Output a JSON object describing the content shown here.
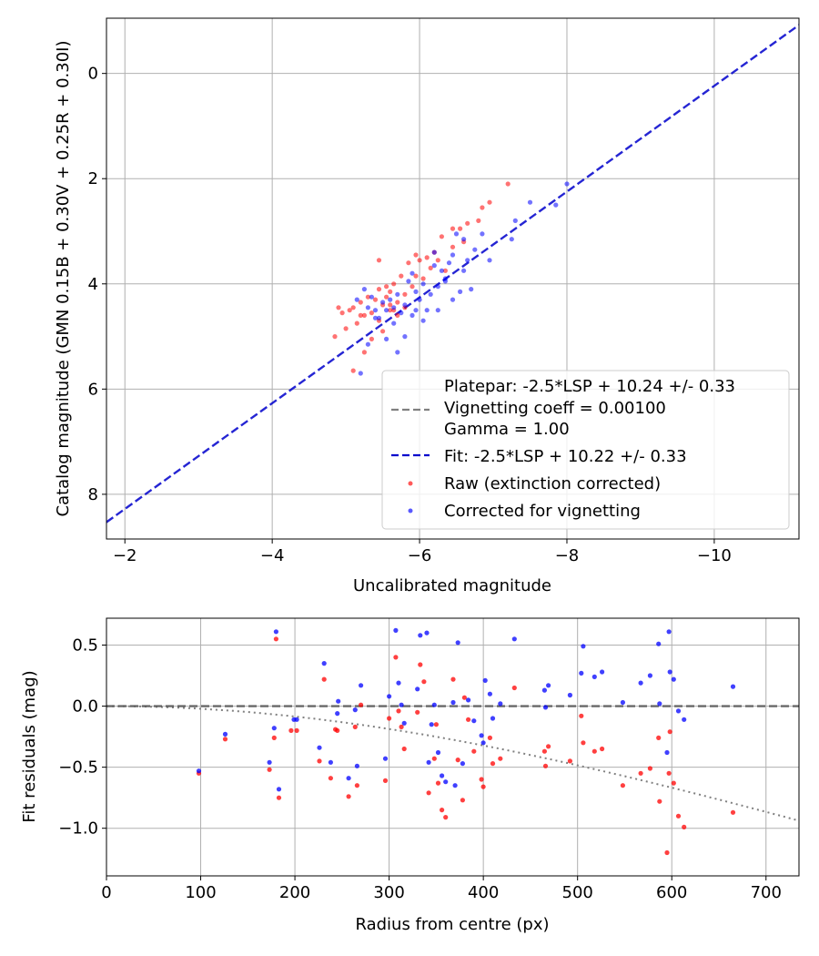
{
  "colors": {
    "raw": "#ff0000",
    "corrected": "#0000ff",
    "fit_line": "#0000cc",
    "platepar_line": "#808080",
    "grid": "#b0b0b0"
  },
  "chart_data": [
    {
      "type": "scatter",
      "xlabel": "Uncalibrated magnitude",
      "ylabel": "Catalog magnitude (GMN 0.15B + 0.30V + 0.25R + 0.30I)",
      "xlim": [
        -1.75,
        -11.15
      ],
      "ylim": [
        8.85,
        -1.05
      ],
      "x_inverted": true,
      "y_inverted": true,
      "grid": true,
      "xticks": [
        -2,
        -4,
        -6,
        -8,
        -10
      ],
      "xtick_labels": [
        "−2",
        "−4",
        "−6",
        "−8",
        "−10"
      ],
      "yticks": [
        0,
        2,
        4,
        6,
        8
      ],
      "ytick_labels": [
        "0",
        "2",
        "4",
        "6",
        "8"
      ],
      "lines": [
        {
          "name": "Fit: -2.5*LSP + 10.22 +/- 0.33",
          "style": "dashed",
          "color": "#0000cc",
          "points": [
            [
              -1.75,
              8.53
            ],
            [
              -11.15,
              -0.92
            ]
          ]
        }
      ],
      "legend": {
        "placement": "lower right",
        "entries": [
          {
            "label": "Platepar: -2.5*LSP + 10.24 +/- 0.33",
            "marker": "none"
          },
          {
            "label": "Vignetting coeff = 0.00100",
            "marker": "dashed",
            "color": "#808080"
          },
          {
            "label": "Gamma = 1.00",
            "marker": "none"
          },
          {
            "label": "Fit: -2.5*LSP + 10.22 +/- 0.33",
            "marker": "dashed",
            "color": "#0000cc"
          },
          {
            "label": "Raw (extinction corrected)",
            "marker": "dot",
            "color": "#ff0000"
          },
          {
            "label": "Corrected for vignetting",
            "marker": "dot",
            "color": "#0000ff"
          }
        ]
      },
      "series": [
        {
          "name": "Raw (extinction corrected)",
          "color": "#ff0000",
          "points": [
            [
              -7.2,
              2.1
            ],
            [
              -6.95,
              2.45
            ],
            [
              -6.85,
              2.55
            ],
            [
              -6.8,
              2.8
            ],
            [
              -6.65,
              2.85
            ],
            [
              -6.55,
              2.95
            ],
            [
              -6.6,
              3.2
            ],
            [
              -6.45,
              3.3
            ],
            [
              -6.3,
              3.1
            ],
            [
              -6.25,
              3.55
            ],
            [
              -6.2,
              3.4
            ],
            [
              -6.15,
              3.7
            ],
            [
              -6.1,
              3.5
            ],
            [
              -6.05,
              3.9
            ],
            [
              -6.0,
              3.55
            ],
            [
              -5.95,
              3.85
            ],
            [
              -5.9,
              4.05
            ],
            [
              -5.85,
              3.6
            ],
            [
              -5.8,
              4.2
            ],
            [
              -5.75,
              3.85
            ],
            [
              -5.7,
              4.35
            ],
            [
              -5.65,
              4.0
            ],
            [
              -5.6,
              4.15
            ],
            [
              -5.55,
              4.25
            ],
            [
              -5.5,
              4.4
            ],
            [
              -5.45,
              4.1
            ],
            [
              -5.4,
              4.3
            ],
            [
              -5.35,
              4.55
            ],
            [
              -5.3,
              4.25
            ],
            [
              -5.25,
              4.6
            ],
            [
              -5.2,
              4.35
            ],
            [
              -5.15,
              4.75
            ],
            [
              -5.1,
              4.45
            ],
            [
              -5.05,
              4.5
            ],
            [
              -5.0,
              4.85
            ],
            [
              -4.95,
              4.55
            ],
            [
              -4.9,
              4.45
            ],
            [
              -4.85,
              5.0
            ],
            [
              -5.25,
              5.3
            ],
            [
              -5.35,
              5.05
            ],
            [
              -5.5,
              4.9
            ],
            [
              -5.6,
              4.5
            ],
            [
              -5.45,
              3.55
            ],
            [
              -5.7,
              4.6
            ],
            [
              -5.8,
              4.45
            ],
            [
              -5.65,
              4.5
            ],
            [
              -5.55,
              4.05
            ],
            [
              -5.45,
              4.7
            ],
            [
              -5.95,
              3.45
            ],
            [
              -6.35,
              3.75
            ],
            [
              -5.2,
              4.6
            ],
            [
              -5.1,
              5.65
            ],
            [
              -5.6,
              4.4
            ],
            [
              -6.45,
              2.95
            ]
          ]
        },
        {
          "name": "Corrected for vignetting",
          "color": "#0000ff",
          "points": [
            [
              -8.0,
              2.1
            ],
            [
              -7.85,
              2.5
            ],
            [
              -7.5,
              2.45
            ],
            [
              -7.3,
              2.8
            ],
            [
              -7.25,
              3.15
            ],
            [
              -6.95,
              3.55
            ],
            [
              -6.85,
              3.05
            ],
            [
              -6.75,
              3.35
            ],
            [
              -6.65,
              3.55
            ],
            [
              -6.6,
              3.15
            ],
            [
              -6.5,
              3.05
            ],
            [
              -6.45,
              3.45
            ],
            [
              -6.4,
              3.6
            ],
            [
              -6.35,
              3.9
            ],
            [
              -6.3,
              3.75
            ],
            [
              -6.25,
              4.05
            ],
            [
              -6.2,
              3.65
            ],
            [
              -6.15,
              4.2
            ],
            [
              -6.1,
              4.5
            ],
            [
              -6.05,
              4.0
            ],
            [
              -6.0,
              4.3
            ],
            [
              -5.95,
              4.15
            ],
            [
              -5.9,
              4.6
            ],
            [
              -5.85,
              3.95
            ],
            [
              -5.8,
              4.4
            ],
            [
              -5.75,
              4.55
            ],
            [
              -5.7,
              4.2
            ],
            [
              -5.65,
              4.75
            ],
            [
              -5.6,
              4.3
            ],
            [
              -5.55,
              4.5
            ],
            [
              -5.5,
              4.35
            ],
            [
              -5.45,
              4.65
            ],
            [
              -5.4,
              4.5
            ],
            [
              -5.35,
              4.25
            ],
            [
              -5.3,
              4.45
            ],
            [
              -5.25,
              4.1
            ],
            [
              -5.2,
              5.7
            ],
            [
              -5.3,
              5.15
            ],
            [
              -5.55,
              5.05
            ],
            [
              -5.7,
              5.3
            ],
            [
              -5.8,
              5.0
            ],
            [
              -6.05,
              4.7
            ],
            [
              -6.25,
              4.5
            ],
            [
              -6.45,
              4.3
            ],
            [
              -6.55,
              4.15
            ],
            [
              -6.6,
              3.75
            ],
            [
              -6.2,
              3.4
            ],
            [
              -5.9,
              3.8
            ],
            [
              -5.4,
              4.65
            ],
            [
              -5.65,
              4.45
            ],
            [
              -6.35,
              3.95
            ],
            [
              -5.95,
              4.5
            ],
            [
              -5.15,
              4.3
            ],
            [
              -6.7,
              4.1
            ]
          ]
        }
      ]
    },
    {
      "type": "scatter",
      "xlabel": "Radius from centre (px)",
      "ylabel": "Fit residuals (mag)",
      "xlim": [
        0,
        735
      ],
      "ylim": [
        -1.39,
        0.72
      ],
      "grid": true,
      "xticks": [
        0,
        100,
        200,
        300,
        400,
        500,
        600,
        700
      ],
      "xtick_labels": [
        "0",
        "100",
        "200",
        "300",
        "400",
        "500",
        "600",
        "700"
      ],
      "yticks": [
        0.5,
        0.0,
        -0.5,
        -1.0
      ],
      "ytick_labels": [
        "0.5",
        "0.0",
        "−0.5",
        "−1.0"
      ],
      "lines": [
        {
          "name": "zero",
          "style": "dashed",
          "color": "#555555",
          "points": [
            [
              0,
              0.0
            ],
            [
              735,
              0.0
            ]
          ]
        }
      ],
      "vignetting_curve": {
        "style": "dotted",
        "color": "#808080",
        "coeff": 0.001,
        "gamma": 1.0
      },
      "series": [
        {
          "name": "Raw (extinction corrected)",
          "color": "#ff0000",
          "points": [
            [
              98,
              -0.55
            ],
            [
              126,
              -0.27
            ],
            [
              173,
              -0.52
            ],
            [
              180,
              0.55
            ],
            [
              183,
              -0.75
            ],
            [
              178,
              -0.26
            ],
            [
              196,
              -0.2
            ],
            [
              202,
              -0.2
            ],
            [
              226,
              -0.45
            ],
            [
              231,
              0.22
            ],
            [
              238,
              -0.59
            ],
            [
              243,
              -0.19
            ],
            [
              245,
              -0.2
            ],
            [
              257,
              -0.74
            ],
            [
              264,
              -0.17
            ],
            [
              266,
              -0.65
            ],
            [
              270,
              0.01
            ],
            [
              296,
              -0.61
            ],
            [
              300,
              -0.1
            ],
            [
              307,
              0.4
            ],
            [
              310,
              -0.04
            ],
            [
              313,
              -0.17
            ],
            [
              316,
              -0.35
            ],
            [
              330,
              -0.05
            ],
            [
              333,
              0.34
            ],
            [
              337,
              0.2
            ],
            [
              342,
              -0.71
            ],
            [
              348,
              -0.43
            ],
            [
              352,
              -0.63
            ],
            [
              356,
              -0.85
            ],
            [
              360,
              -0.91
            ],
            [
              368,
              0.22
            ],
            [
              373,
              -0.44
            ],
            [
              378,
              -0.77
            ],
            [
              384,
              -0.11
            ],
            [
              390,
              -0.37
            ],
            [
              398,
              -0.6
            ],
            [
              400,
              -0.66
            ],
            [
              407,
              -0.26
            ],
            [
              410,
              -0.47
            ],
            [
              418,
              -0.43
            ],
            [
              433,
              0.15
            ],
            [
              465,
              -0.37
            ],
            [
              466,
              -0.49
            ],
            [
              469,
              -0.33
            ],
            [
              492,
              -0.45
            ],
            [
              504,
              -0.08
            ],
            [
              506,
              -0.3
            ],
            [
              518,
              -0.37
            ],
            [
              526,
              -0.35
            ],
            [
              548,
              -0.65
            ],
            [
              567,
              -0.55
            ],
            [
              577,
              -0.51
            ],
            [
              586,
              -0.26
            ],
            [
              587,
              -0.78
            ],
            [
              595,
              -1.2
            ],
            [
              597,
              -0.55
            ],
            [
              598,
              -0.21
            ],
            [
              602,
              -0.63
            ],
            [
              607,
              -0.9
            ],
            [
              613,
              -0.99
            ],
            [
              665,
              -0.87
            ],
            [
              350,
              -0.15
            ],
            [
              380,
              0.07
            ]
          ]
        },
        {
          "name": "Corrected for vignetting",
          "color": "#0000ff",
          "points": [
            [
              98,
              -0.53
            ],
            [
              126,
              -0.23
            ],
            [
              173,
              -0.46
            ],
            [
              180,
              0.61
            ],
            [
              183,
              -0.68
            ],
            [
              178,
              -0.18
            ],
            [
              199,
              -0.11
            ],
            [
              202,
              -0.11
            ],
            [
              226,
              -0.34
            ],
            [
              231,
              0.35
            ],
            [
              238,
              -0.46
            ],
            [
              245,
              -0.06
            ],
            [
              246,
              0.04
            ],
            [
              257,
              -0.59
            ],
            [
              264,
              -0.03
            ],
            [
              266,
              -0.49
            ],
            [
              270,
              0.17
            ],
            [
              296,
              -0.43
            ],
            [
              300,
              0.08
            ],
            [
              307,
              0.62
            ],
            [
              310,
              0.19
            ],
            [
              313,
              0.01
            ],
            [
              316,
              -0.14
            ],
            [
              330,
              0.14
            ],
            [
              333,
              0.58
            ],
            [
              340,
              0.6
            ],
            [
              342,
              -0.46
            ],
            [
              348,
              0.01
            ],
            [
              352,
              -0.38
            ],
            [
              356,
              -0.57
            ],
            [
              360,
              -0.62
            ],
            [
              368,
              0.03
            ],
            [
              373,
              0.52
            ],
            [
              378,
              -0.47
            ],
            [
              384,
              0.05
            ],
            [
              390,
              -0.12
            ],
            [
              398,
              -0.24
            ],
            [
              400,
              -0.3
            ],
            [
              402,
              0.21
            ],
            [
              407,
              0.1
            ],
            [
              410,
              -0.1
            ],
            [
              418,
              0.02
            ],
            [
              433,
              0.55
            ],
            [
              465,
              0.13
            ],
            [
              466,
              -0.01
            ],
            [
              469,
              0.17
            ],
            [
              492,
              0.09
            ],
            [
              504,
              0.27
            ],
            [
              506,
              0.49
            ],
            [
              518,
              0.24
            ],
            [
              526,
              0.28
            ],
            [
              548,
              0.03
            ],
            [
              567,
              0.19
            ],
            [
              577,
              0.25
            ],
            [
              586,
              0.51
            ],
            [
              587,
              0.02
            ],
            [
              595,
              -0.38
            ],
            [
              597,
              0.61
            ],
            [
              598,
              0.28
            ],
            [
              602,
              0.22
            ],
            [
              607,
              -0.04
            ],
            [
              613,
              -0.11
            ],
            [
              665,
              0.16
            ],
            [
              345,
              -0.15
            ],
            [
              370,
              -0.65
            ]
          ]
        }
      ]
    }
  ]
}
